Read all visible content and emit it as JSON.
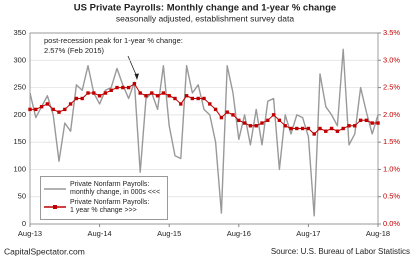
{
  "chart_data": {
    "type": "line",
    "title": "US Private Payrolls: Monthly change and 1-year % change",
    "subtitle": "seasonally adjusted, establishment survey data",
    "annotation": [
      "post-recession peak for 1-year % change:",
      "2.57% (Feb 2015)"
    ],
    "footer_left": "CapitalSpectator.com",
    "footer_right": "Source: U.S. Bureau of Labor Statistics",
    "categories": [
      "Aug-13",
      null,
      null,
      null,
      null,
      null,
      null,
      null,
      null,
      null,
      null,
      null,
      "Aug-14",
      null,
      null,
      null,
      null,
      null,
      null,
      null,
      null,
      null,
      null,
      null,
      "Aug-15",
      null,
      null,
      null,
      null,
      null,
      null,
      null,
      null,
      null,
      null,
      null,
      "Aug-16",
      null,
      null,
      null,
      null,
      null,
      null,
      null,
      null,
      null,
      null,
      null,
      "Aug-17",
      null,
      null,
      null,
      null,
      null,
      null,
      null,
      null,
      null,
      null,
      null,
      "Aug-18"
    ],
    "ylim": [
      0,
      350
    ],
    "yticks": [
      0,
      50,
      100,
      150,
      200,
      250,
      300,
      350
    ],
    "y2lim": [
      0,
      3.5
    ],
    "y2ticks": [
      {
        "value": 0,
        "label": "0.0%"
      },
      {
        "value": 0.5,
        "label": "0.5%"
      },
      {
        "value": 1,
        "label": "1.0%"
      },
      {
        "value": 1.5,
        "label": "1.5%"
      },
      {
        "value": 2,
        "label": "2.0%"
      },
      {
        "value": 2.5,
        "label": "2.5%"
      },
      {
        "value": 3,
        "label": "3.0%"
      },
      {
        "value": 3.5,
        "label": "3.5%"
      }
    ],
    "grid": true,
    "series": [
      {
        "name": "Private Nonfarm Payrolls:\nmonthly change, in 000s <<<",
        "color": "#999999",
        "axis": "y",
        "values": [
          240,
          195,
          215,
          235,
          200,
          115,
          185,
          170,
          255,
          245,
          290,
          240,
          220,
          245,
          250,
          285,
          255,
          230,
          260,
          95,
          230,
          240,
          210,
          290,
          180,
          125,
          120,
          290,
          240,
          255,
          210,
          200,
          150,
          20,
          290,
          240,
          155,
          200,
          145,
          210,
          145,
          225,
          230,
          100,
          200,
          165,
          200,
          195,
          160,
          15,
          275,
          215,
          200,
          180,
          320,
          145,
          165,
          250,
          205,
          165,
          200
        ]
      },
      {
        "name": "Private Nonfarm Payrolls:\n1 year % change >>>",
        "color": "#c00000",
        "axis": "y2",
        "markers": true,
        "values": [
          2.1,
          2.1,
          2.15,
          2.2,
          2.1,
          2.05,
          2.1,
          2.2,
          2.3,
          2.3,
          2.4,
          2.4,
          2.35,
          2.4,
          2.45,
          2.5,
          2.5,
          2.5,
          2.57,
          2.4,
          2.35,
          2.4,
          2.35,
          2.4,
          2.35,
          2.3,
          2.2,
          2.35,
          2.3,
          2.3,
          2.3,
          2.2,
          2.1,
          1.95,
          2.05,
          2.0,
          1.9,
          1.85,
          1.8,
          1.8,
          1.85,
          1.9,
          2.0,
          1.9,
          1.8,
          1.75,
          1.75,
          1.75,
          1.75,
          1.65,
          1.75,
          1.7,
          1.75,
          1.7,
          1.75,
          1.8,
          1.8,
          1.9,
          1.9,
          1.85,
          1.85
        ]
      }
    ]
  }
}
